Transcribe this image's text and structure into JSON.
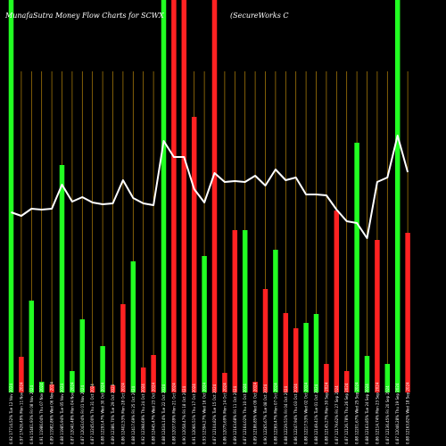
{
  "chart_data": {
    "type": "bar",
    "title": "MunafaSutra  Money Flow  Charts for SCWX",
    "subtitle": "(SecureWorks C",
    "colors": {
      "background": "#000000",
      "up": "#22ff22",
      "down": "#ff2222",
      "grid": "#b8860b",
      "line": "#ffffff"
    },
    "grid": true,
    "categories": [
      "0.92 17714.52% Tue 12 Nov 2024",
      "0.97 17426.49% Mon 11 Nov 2024",
      "0.94 15461.93% Fri 08 Nov 2024",
      "0.91 11986.04% Thu 07 Nov 2024",
      "0.89 11982.86% Wed 06 Nov 2024",
      "0.88 11985.94% Tue 05 Nov 2024",
      "0.87 12040.48% Mon 04 Nov 2024",
      "0.87 12043.04% Fri 01 Nov 2024",
      "0.87 12245.00% Thu 31 Oct 2024",
      "0.88 12293.47% Wed 30 Oct 2024",
      "0.89 12386.70% Tue 29 Oct 2024",
      "0.86 12402.53% Mon 28 Oct 2024",
      "0.88 12417.69% Fri 25 Oct 2024",
      "0.92 12398.69% Thu 24 Oct 2024",
      "0.88 12445.47% Wed 23 Oct 2024",
      "0.88 12434.14% Tue 22 Oct 2024",
      "0.88 12037.89% Mon 21 Oct 2024",
      "0.90 12058.47% Fri 18 Oct 2024",
      "0.91 12066.51% Thu 17 Oct 2024",
      "0.93 12394.27% Wed 16 Oct 2024",
      "0.87 12104.82% Tue 15 Oct 2024",
      "0.86 12075.69% Mon 14 Oct 2024",
      "0.89 12163.68% Fri 11 Oct 2024",
      "0.87 12164.02% Thu 10 Oct 2024",
      "0.89 12186.85% Wed 09 Oct 2024",
      "0.90 12265.67% Tue 08 Oct 2024",
      "0.88 12269.47% Mon 07 Oct 2024",
      "0.88 12229.51% Fri 04 Oct 2024",
      "0.86 12247.94% Thu 03 Oct 2024",
      "0.88 12217.53% Wed 02 Oct 2024",
      "0.88 12149.41% Tue 01 Oct 2024",
      "0.88 12145.27% Mon 30 Sep 2024",
      "0.87 12179.62% Fri 27 Sep 2024",
      "0.87 12126.78% Thu 26 Sep 2024",
      "0.88 12201.67% Wed 25 Sep 2024",
      "0.88 12163.85% Tue 24 Sep 2024",
      "0.86 12114.74% Mon 23 Sep 2024",
      "0.87 12136.45% Fri 20 Sep 2024",
      "0.87 12046.28% Thu 19 Sep 2024",
      "0.88 12163.82% Wed 18 Sep 2024"
    ],
    "series": [
      {
        "kind": "bar",
        "colors_by_bar": [
          "up",
          "down",
          "up",
          "up",
          "down",
          "up",
          "up",
          "up",
          "down",
          "up",
          "down",
          "down",
          "up",
          "down",
          "down",
          "up",
          "down",
          "down",
          "down",
          "up",
          "down",
          "down",
          "down",
          "up",
          "down",
          "down",
          "up",
          "down",
          "down",
          "up",
          "up",
          "down",
          "down",
          "down",
          "up",
          "up",
          "down",
          "up",
          "up",
          "down"
        ],
        "values": [
          440,
          40,
          103,
          12,
          9,
          255,
          24,
          82,
          7,
          52,
          8,
          99,
          147,
          28,
          42,
          440,
          440,
          440,
          309,
          153,
          440,
          22,
          182,
          182,
          12,
          116,
          160,
          89,
          72,
          78,
          88,
          32,
          204,
          24,
          280,
          41,
          171,
          32,
          440,
          179
        ]
      },
      {
        "kind": "line",
        "values": [
          202,
          198,
          206,
          205,
          206,
          233,
          214,
          219,
          213,
          211,
          212,
          238,
          218,
          212,
          210,
          282,
          264,
          264,
          228,
          213,
          246,
          236,
          237,
          236,
          243,
          232,
          250,
          238,
          241,
          222,
          222,
          221,
          205,
          192,
          190,
          173,
          236,
          241,
          288,
          247
        ]
      }
    ],
    "ylim": [
      0,
      440
    ]
  }
}
